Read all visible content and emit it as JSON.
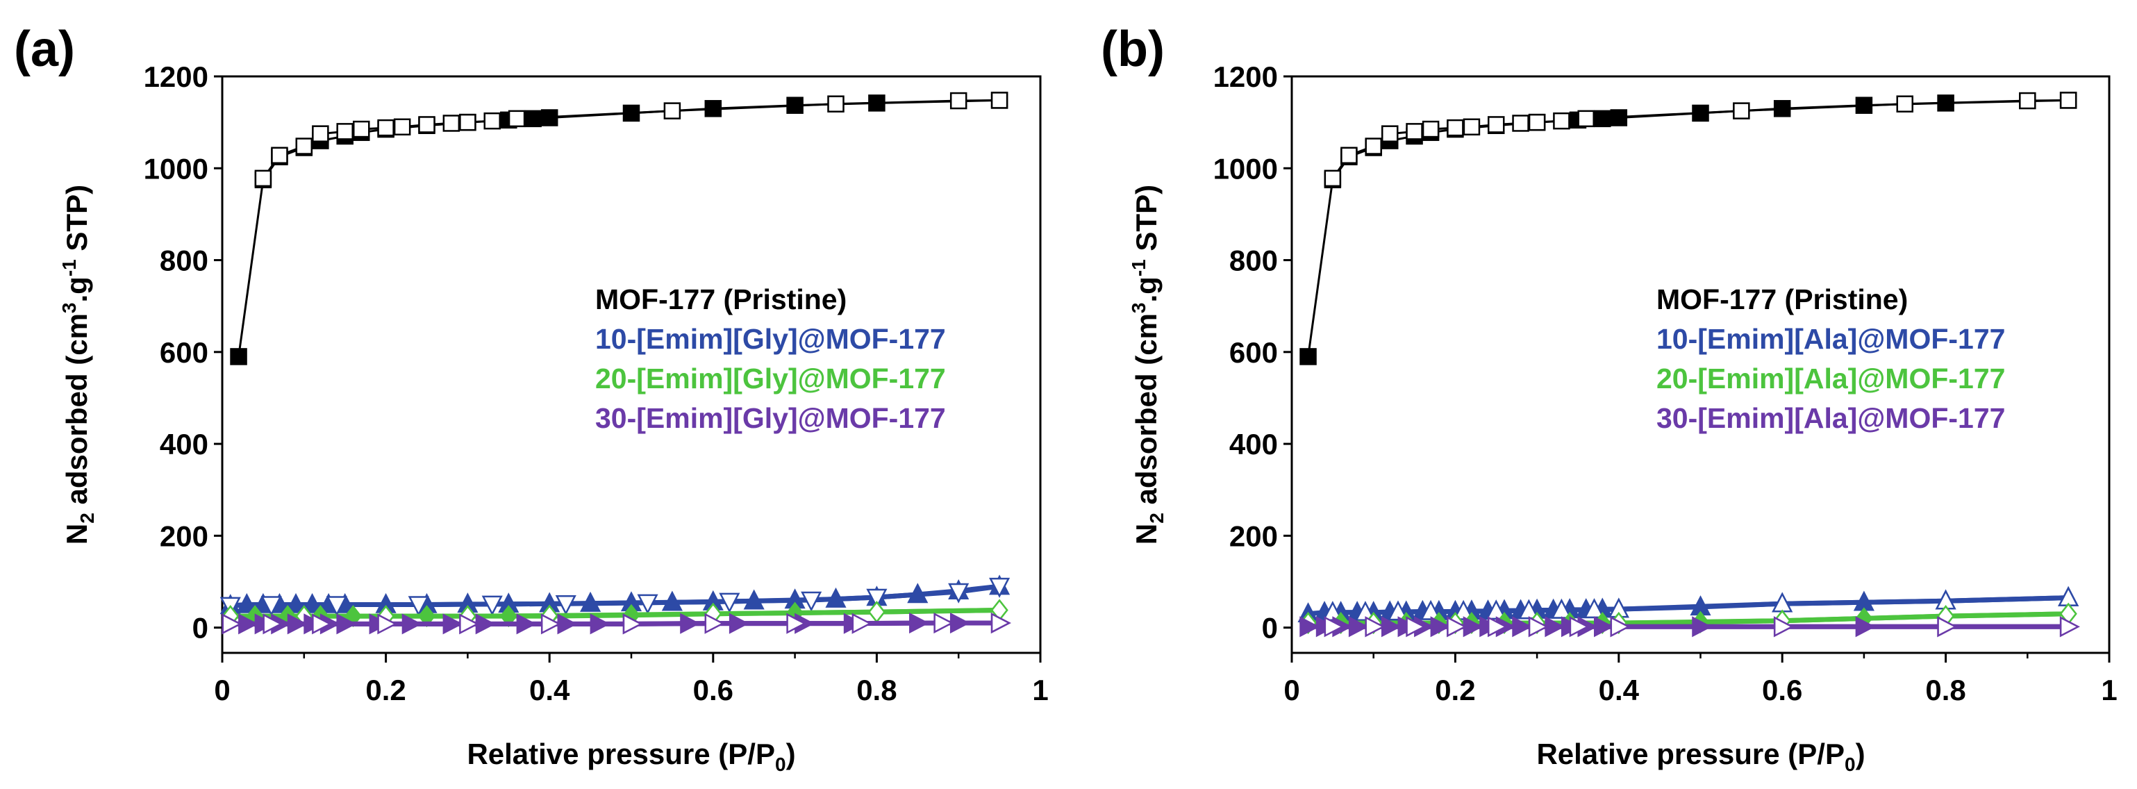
{
  "chart_data": [
    {
      "panel_label": "(a)",
      "type": "scatter",
      "xlabel": "Relative pressure (P/P",
      "xlabel_sub": "0",
      "xlabel_end": ")",
      "ylabel_parts": [
        "N",
        "2",
        " adsorbed (cm",
        "3",
        ".g",
        "-1",
        " STP)"
      ],
      "xlim": [
        0,
        1
      ],
      "ylim": [
        -55,
        1200
      ],
      "xticks": [
        "0",
        "0.2",
        "0.4",
        "0.6",
        "0.8",
        "1"
      ],
      "yticks": [
        "0",
        "200",
        "400",
        "600",
        "800",
        "1000",
        "1200"
      ],
      "legend_placement": "center-right",
      "series": [
        {
          "name": "MOF-177 (Pristine)",
          "color": "#000000",
          "marker_ads": "square-filled",
          "marker_des": "square-open",
          "adsorption": {
            "x": [
              0.02,
              0.05,
              0.07,
              0.1,
              0.12,
              0.15,
              0.17,
              0.2,
              0.25,
              0.3,
              0.35,
              0.38,
              0.4,
              0.5,
              0.6,
              0.7,
              0.8,
              0.95
            ],
            "y": [
              590,
              975,
              1025,
              1045,
              1060,
              1070,
              1078,
              1085,
              1093,
              1100,
              1105,
              1108,
              1110,
              1120,
              1130,
              1137,
              1142,
              1148
            ]
          },
          "desorption": {
            "x": [
              0.95,
              0.9,
              0.75,
              0.55,
              0.36,
              0.33,
              0.3,
              0.28,
              0.25,
              0.22,
              0.2,
              0.17,
              0.15,
              0.12,
              0.1,
              0.07,
              0.05
            ],
            "y": [
              1148,
              1147,
              1140,
              1125,
              1108,
              1103,
              1100,
              1098,
              1095,
              1090,
              1088,
              1085,
              1080,
              1075,
              1048,
              1028,
              978
            ]
          }
        },
        {
          "name": "10-[Emim][Gly]@MOF-177",
          "color": "#2d4aa6",
          "marker_ads": "triangle-up-filled",
          "marker_des": "triangle-down-open",
          "adsorption": {
            "x": [
              0.01,
              0.03,
              0.05,
              0.07,
              0.09,
              0.11,
              0.13,
              0.15,
              0.2,
              0.25,
              0.3,
              0.35,
              0.4,
              0.45,
              0.5,
              0.55,
              0.6,
              0.65,
              0.7,
              0.75,
              0.8,
              0.85,
              0.9,
              0.95
            ],
            "y": [
              48,
              50,
              50,
              50,
              50,
              50,
              50,
              50,
              50,
              50,
              51,
              51,
              52,
              53,
              54,
              55,
              56,
              58,
              60,
              62,
              66,
              72,
              80,
              90
            ]
          },
          "desorption": {
            "x": [
              0.95,
              0.9,
              0.8,
              0.72,
              0.62,
              0.52,
              0.42,
              0.33,
              0.24,
              0.14,
              0.06,
              0.01
            ],
            "y": [
              90,
              78,
              66,
              60,
              57,
              54,
              52,
              51,
              50,
              50,
              50,
              48
            ]
          }
        },
        {
          "name": "20-[Emim][Gly]@MOF-177",
          "color": "#4cc43e",
          "marker_ads": "diamond-filled",
          "marker_des": "diamond-open",
          "adsorption": {
            "x": [
              0.01,
              0.04,
              0.08,
              0.12,
              0.16,
              0.2,
              0.25,
              0.3,
              0.35,
              0.4,
              0.5,
              0.6,
              0.7,
              0.8,
              0.95
            ],
            "y": [
              25,
              25,
              25,
              25,
              25,
              25,
              25,
              25,
              25,
              25,
              27,
              30,
              32,
              34,
              38
            ]
          },
          "desorption": {
            "x": [
              0.95,
              0.8,
              0.6,
              0.4,
              0.3,
              0.2,
              0.1,
              0.01
            ],
            "y": [
              38,
              34,
              30,
              26,
              25,
              25,
              25,
              25
            ]
          }
        },
        {
          "name": "30-[Emim][Gly]@MOF-177",
          "color": "#6a3aa8",
          "marker_ads": "triangle-right-filled",
          "marker_des": "triangle-right-open",
          "adsorption": {
            "x": [
              0.01,
              0.03,
              0.05,
              0.07,
              0.09,
              0.11,
              0.13,
              0.15,
              0.19,
              0.23,
              0.28,
              0.32,
              0.37,
              0.42,
              0.46,
              0.5,
              0.57,
              0.63,
              0.71,
              0.77,
              0.85,
              0.9,
              0.95
            ],
            "y": [
              8,
              8,
              8,
              8,
              8,
              8,
              8,
              8,
              8,
              8,
              8,
              8,
              8,
              8,
              8,
              8,
              9,
              9,
              9,
              9,
              10,
              10,
              10
            ]
          },
          "desorption": {
            "x": [
              0.95,
              0.88,
              0.78,
              0.7,
              0.6,
              0.5,
              0.4,
              0.3,
              0.2,
              0.12,
              0.06,
              0.01
            ],
            "y": [
              10,
              10,
              9,
              9,
              9,
              8,
              8,
              8,
              8,
              8,
              8,
              8
            ]
          }
        }
      ]
    },
    {
      "panel_label": "(b)",
      "type": "scatter",
      "xlabel": "Relative pressure (P/P",
      "xlabel_sub": "0",
      "xlabel_end": ")",
      "ylabel_parts": [
        "N",
        "2",
        " adsorbed (cm",
        "3",
        ".g",
        "-1",
        " STP)"
      ],
      "xlim": [
        0,
        1
      ],
      "ylim": [
        -55,
        1200
      ],
      "xticks": [
        "0",
        "0.2",
        "0.4",
        "0.6",
        "0.8",
        "1"
      ],
      "yticks": [
        "0",
        "200",
        "400",
        "600",
        "800",
        "1000",
        "1200"
      ],
      "legend_placement": "center-right",
      "series": [
        {
          "name": "MOF-177 (Pristine)",
          "color": "#000000",
          "marker_ads": "square-filled",
          "marker_des": "square-open",
          "adsorption": {
            "x": [
              0.02,
              0.05,
              0.07,
              0.1,
              0.12,
              0.15,
              0.17,
              0.2,
              0.25,
              0.3,
              0.35,
              0.38,
              0.4,
              0.5,
              0.6,
              0.7,
              0.8,
              0.95
            ],
            "y": [
              590,
              975,
              1025,
              1045,
              1060,
              1070,
              1078,
              1085,
              1093,
              1100,
              1105,
              1108,
              1110,
              1120,
              1130,
              1137,
              1142,
              1148
            ]
          },
          "desorption": {
            "x": [
              0.95,
              0.9,
              0.75,
              0.55,
              0.36,
              0.33,
              0.3,
              0.28,
              0.25,
              0.22,
              0.2,
              0.17,
              0.15,
              0.12,
              0.1,
              0.07,
              0.05
            ],
            "y": [
              1148,
              1147,
              1140,
              1125,
              1108,
              1103,
              1100,
              1098,
              1095,
              1090,
              1088,
              1085,
              1080,
              1075,
              1048,
              1028,
              978
            ]
          }
        },
        {
          "name": "10-[Emim][Ala]@MOF-177",
          "color": "#2d4aa6",
          "marker_ads": "triangle-up-filled",
          "marker_des": "triangle-up-open",
          "adsorption": {
            "x": [
              0.02,
              0.04,
              0.06,
              0.08,
              0.1,
              0.12,
              0.14,
              0.16,
              0.18,
              0.2,
              0.22,
              0.24,
              0.26,
              0.28,
              0.3,
              0.32,
              0.34,
              0.36,
              0.38,
              0.4,
              0.5,
              0.6,
              0.7,
              0.8,
              0.95
            ],
            "y": [
              30,
              33,
              33,
              33,
              33,
              34,
              34,
              35,
              35,
              35,
              36,
              36,
              37,
              37,
              38,
              38,
              39,
              39,
              40,
              40,
              45,
              52,
              55,
              58,
              65
            ]
          },
          "desorption": {
            "x": [
              0.95,
              0.8,
              0.6,
              0.4,
              0.37,
              0.33,
              0.29,
              0.25,
              0.21,
              0.17,
              0.13,
              0.09,
              0.05
            ],
            "y": [
              65,
              58,
              52,
              40,
              39,
              38,
              37,
              36,
              35,
              35,
              34,
              33,
              33
            ]
          }
        },
        {
          "name": "20-[Emim][Ala]@MOF-177",
          "color": "#4cc43e",
          "marker_ads": "diamond-filled",
          "marker_des": "diamond-open",
          "adsorption": {
            "x": [
              0.02,
              0.06,
              0.1,
              0.14,
              0.18,
              0.22,
              0.26,
              0.3,
              0.34,
              0.38,
              0.4,
              0.5,
              0.6,
              0.7,
              0.8,
              0.95
            ],
            "y": [
              10,
              10,
              10,
              10,
              10,
              10,
              10,
              10,
              10,
              10,
              10,
              12,
              15,
              20,
              25,
              30
            ]
          },
          "desorption": {
            "x": [
              0.95,
              0.8,
              0.6,
              0.4,
              0.3,
              0.2,
              0.1,
              0.02
            ],
            "y": [
              30,
              25,
              15,
              10,
              10,
              10,
              10,
              10
            ]
          }
        },
        {
          "name": "30-[Emim][Ala]@MOF-177",
          "color": "#6a3aa8",
          "marker_ads": "triangle-right-filled",
          "marker_des": "triangle-right-open",
          "adsorption": {
            "x": [
              0.02,
              0.04,
              0.06,
              0.08,
              0.1,
              0.12,
              0.14,
              0.16,
              0.18,
              0.2,
              0.22,
              0.24,
              0.26,
              0.28,
              0.3,
              0.32,
              0.34,
              0.36,
              0.38,
              0.4,
              0.5,
              0.6,
              0.7,
              0.8,
              0.95
            ],
            "y": [
              2,
              2,
              2,
              2,
              2,
              2,
              2,
              2,
              2,
              2,
              2,
              2,
              2,
              2,
              2,
              2,
              2,
              2,
              2,
              2,
              2,
              2,
              2,
              2,
              2
            ]
          },
          "desorption": {
            "x": [
              0.95,
              0.8,
              0.6,
              0.4,
              0.35,
              0.3,
              0.25,
              0.2,
              0.15,
              0.1,
              0.05
            ],
            "y": [
              2,
              2,
              2,
              2,
              2,
              2,
              2,
              2,
              2,
              2,
              2
            ]
          }
        }
      ]
    }
  ]
}
